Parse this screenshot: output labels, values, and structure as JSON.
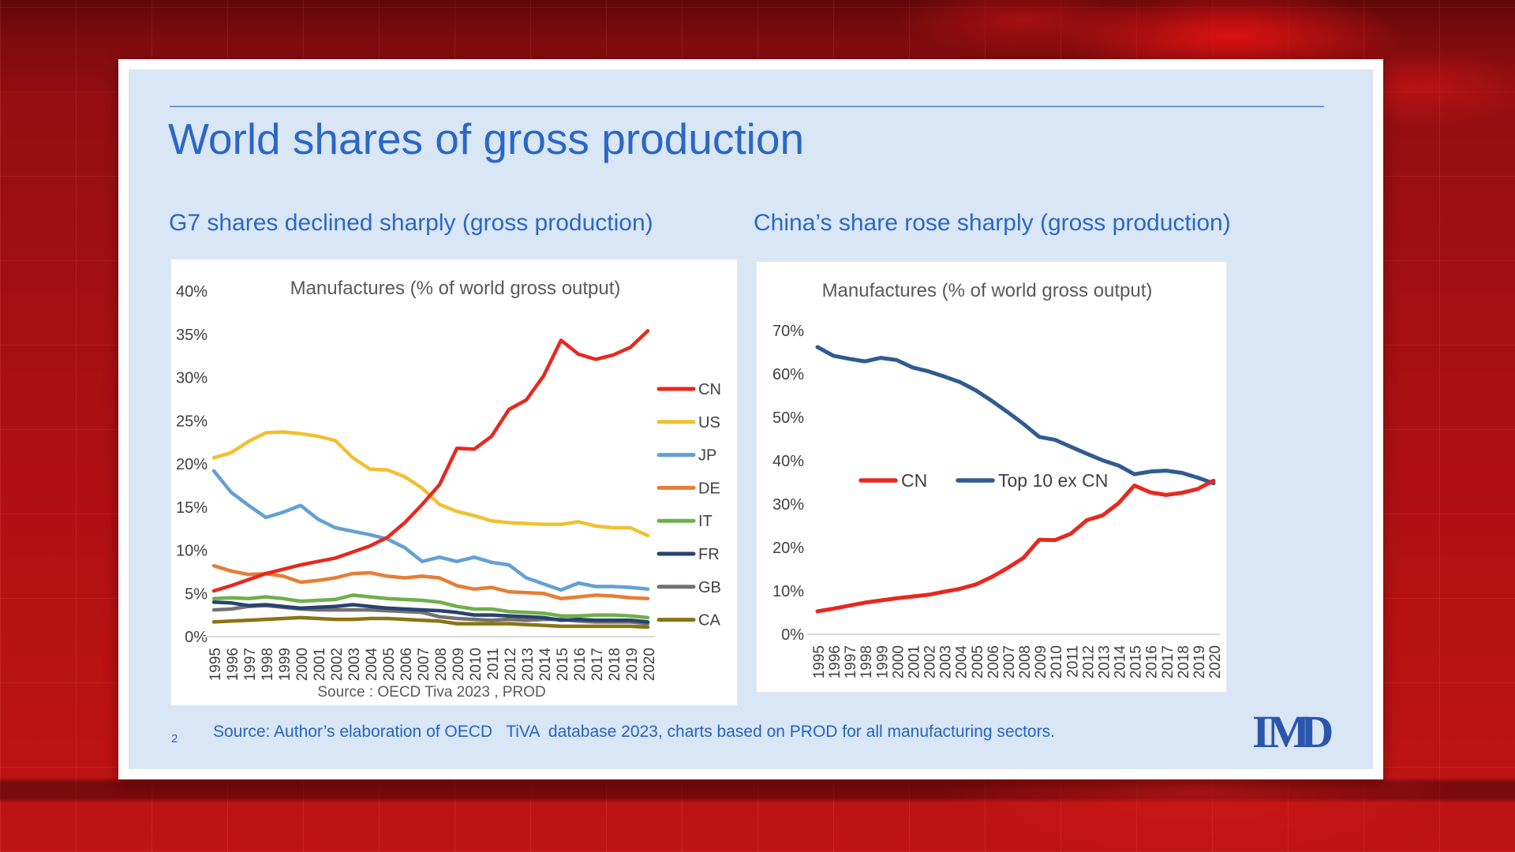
{
  "slide": {
    "title": "World shares of gross production",
    "left_heading": "G7 shares declined sharply (gross production)",
    "right_heading": "China’s share rose sharply (gross production)",
    "page_number": "2",
    "footer": "Source: Author’s elaboration of OECD   TiVA  database 2023, charts based on PROD for all manufacturing sectors.",
    "logo_i": "I",
    "logo_m": "M",
    "logo_d": "D",
    "accent_color": "#2b67c4",
    "slide_bg": "#d9e6f5",
    "backdrop_color": "#b01113"
  },
  "chart_data": [
    {
      "type": "line",
      "title": "Manufactures (% of world gross output)",
      "xlabel": "",
      "ylabel": "",
      "x": [
        1995,
        1996,
        1997,
        1998,
        1999,
        2000,
        2001,
        2002,
        2003,
        2004,
        2005,
        2006,
        2007,
        2008,
        2009,
        2010,
        2011,
        2012,
        2013,
        2014,
        2015,
        2016,
        2017,
        2018,
        2019,
        2020
      ],
      "ylim": [
        0,
        40
      ],
      "ytick_step": 5,
      "grid": false,
      "legend_position": "right",
      "source_note": "Source : OECD Tiva 2023 , PROD",
      "series": [
        {
          "name": "CN",
          "color": "#e8281e",
          "values": [
            5.3,
            5.9,
            6.6,
            7.3,
            7.8,
            8.3,
            8.7,
            9.1,
            9.8,
            10.5,
            11.5,
            13.2,
            15.3,
            17.6,
            21.8,
            21.7,
            23.2,
            26.3,
            27.4,
            30.2,
            34.3,
            32.7,
            32.1,
            32.6,
            33.5,
            35.4
          ]
        },
        {
          "name": "US",
          "color": "#efc132",
          "values": [
            20.7,
            21.3,
            22.6,
            23.6,
            23.7,
            23.5,
            23.2,
            22.7,
            20.7,
            19.4,
            19.3,
            18.5,
            17.2,
            15.3,
            14.5,
            14.0,
            13.4,
            13.2,
            13.1,
            13.0,
            13.0,
            13.3,
            12.8,
            12.6,
            12.6,
            11.7
          ]
        },
        {
          "name": "JP",
          "color": "#63a0d4",
          "values": [
            19.2,
            16.7,
            15.2,
            13.8,
            14.4,
            15.2,
            13.6,
            12.6,
            12.2,
            11.8,
            11.3,
            10.3,
            8.7,
            9.2,
            8.7,
            9.2,
            8.6,
            8.3,
            6.8,
            6.1,
            5.4,
            6.2,
            5.8,
            5.8,
            5.7,
            5.5
          ]
        },
        {
          "name": "DE",
          "color": "#e57e35",
          "values": [
            8.2,
            7.6,
            7.2,
            7.3,
            7.0,
            6.3,
            6.5,
            6.8,
            7.3,
            7.4,
            7.0,
            6.8,
            7.0,
            6.8,
            5.9,
            5.5,
            5.7,
            5.2,
            5.1,
            5.0,
            4.4,
            4.6,
            4.8,
            4.7,
            4.5,
            4.4
          ]
        },
        {
          "name": "IT",
          "color": "#6faf4b",
          "values": [
            4.4,
            4.5,
            4.4,
            4.6,
            4.4,
            4.1,
            4.2,
            4.3,
            4.8,
            4.6,
            4.4,
            4.3,
            4.2,
            4.0,
            3.5,
            3.2,
            3.2,
            2.9,
            2.8,
            2.7,
            2.4,
            2.4,
            2.5,
            2.5,
            2.4,
            2.2
          ]
        },
        {
          "name": "FR",
          "color": "#27436f",
          "values": [
            4.0,
            3.9,
            3.6,
            3.7,
            3.5,
            3.3,
            3.4,
            3.5,
            3.7,
            3.5,
            3.3,
            3.2,
            3.1,
            3.0,
            2.8,
            2.5,
            2.5,
            2.4,
            2.3,
            2.2,
            1.9,
            2.0,
            1.9,
            1.9,
            1.9,
            1.7
          ]
        },
        {
          "name": "GB",
          "color": "#757171",
          "values": [
            3.1,
            3.2,
            3.5,
            3.6,
            3.4,
            3.2,
            3.1,
            3.1,
            3.1,
            3.1,
            3.0,
            2.9,
            2.8,
            2.3,
            2.1,
            2.0,
            1.9,
            2.0,
            1.9,
            2.0,
            2.0,
            1.8,
            1.7,
            1.7,
            1.7,
            1.5
          ]
        },
        {
          "name": "CA",
          "color": "#8a7413",
          "values": [
            1.7,
            1.8,
            1.9,
            2.0,
            2.1,
            2.2,
            2.1,
            2.0,
            2.0,
            2.1,
            2.1,
            2.0,
            1.9,
            1.8,
            1.5,
            1.5,
            1.5,
            1.5,
            1.4,
            1.3,
            1.2,
            1.2,
            1.2,
            1.2,
            1.2,
            1.1
          ]
        }
      ]
    },
    {
      "type": "line",
      "title": "Manufactures (% of world gross output)",
      "xlabel": "",
      "ylabel": "",
      "x": [
        1995,
        1996,
        1997,
        1998,
        1999,
        2000,
        2001,
        2002,
        2003,
        2004,
        2005,
        2006,
        2007,
        2008,
        2009,
        2010,
        2011,
        2012,
        2013,
        2014,
        2015,
        2016,
        2017,
        2018,
        2019,
        2020
      ],
      "ylim": [
        0,
        70
      ],
      "ytick_step": 10,
      "grid": false,
      "legend_position": "inside",
      "series": [
        {
          "name": "CN",
          "color": "#e8281e",
          "values": [
            5.3,
            5.9,
            6.6,
            7.3,
            7.8,
            8.3,
            8.7,
            9.1,
            9.8,
            10.5,
            11.5,
            13.2,
            15.3,
            17.6,
            21.8,
            21.7,
            23.2,
            26.3,
            27.4,
            30.2,
            34.3,
            32.7,
            32.1,
            32.6,
            33.5,
            35.4
          ]
        },
        {
          "name": "Top 10 ex CN",
          "color": "#2f5b8f",
          "values": [
            66.2,
            64.2,
            63.5,
            62.9,
            63.7,
            63.2,
            61.5,
            60.6,
            59.4,
            58.1,
            56.2,
            53.8,
            51.2,
            48.5,
            45.5,
            44.8,
            43.2,
            41.6,
            40.1,
            38.9,
            36.9,
            37.5,
            37.7,
            37.2,
            36.1,
            34.8
          ]
        }
      ]
    }
  ]
}
